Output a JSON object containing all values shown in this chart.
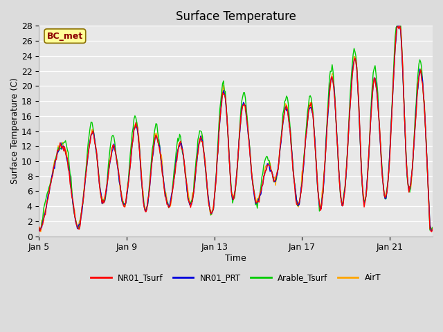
{
  "title": "Surface Temperature",
  "xlabel": "Time",
  "ylabel": "Surface Temperature (C)",
  "ylim": [
    0,
    28
  ],
  "yticks": [
    0,
    2,
    4,
    6,
    8,
    10,
    12,
    14,
    16,
    18,
    20,
    22,
    24,
    26,
    28
  ],
  "xtick_labels": [
    "Jan 5",
    "Jan 9",
    "Jan 13",
    "Jan 17",
    "Jan 21"
  ],
  "xtick_positions": [
    0,
    96,
    192,
    288,
    384
  ],
  "annotation_text": "BC_met",
  "annotation_color": "#8B0000",
  "annotation_bg": "#FFFF99",
  "fig_bg": "#DCDCDC",
  "plot_bg": "#E8E8E8",
  "series_colors": [
    "#FF0000",
    "#0000DD",
    "#00CC00",
    "#FFA500"
  ],
  "series_labels": [
    "NR01_Tsurf",
    "NR01_PRT",
    "Arable_Tsurf",
    "AirT"
  ],
  "line_width": 1.0,
  "n_points": 432,
  "pts_per_day": 24,
  "peak_days": [
    1.3,
    2.5,
    3.4,
    4.5,
    5.3,
    6.5,
    7.4,
    8.5,
    9.3,
    10.5,
    11.3,
    12.5,
    13.4,
    14.5,
    15.3,
    16.5,
    17.4
  ],
  "peak_vals": [
    10,
    13.5,
    12,
    14,
    13,
    12,
    13,
    18.5,
    17.5,
    9.5,
    17,
    16,
    21,
    22,
    21,
    27.5,
    22
  ],
  "trough_days": [
    0.5,
    1.8,
    2.9,
    3.9,
    4.8,
    5.9,
    6.9,
    7.9,
    8.8,
    9.8,
    10.8,
    11.8,
    12.8,
    13.8,
    14.8,
    15.8,
    16.8,
    17.8
  ],
  "trough_vals": [
    6.5,
    1.2,
    4.5,
    4,
    3.8,
    4,
    4,
    3,
    5.5,
    5.8,
    7.5,
    4.2,
    4,
    4.5,
    5,
    5,
    8,
    3.5
  ]
}
